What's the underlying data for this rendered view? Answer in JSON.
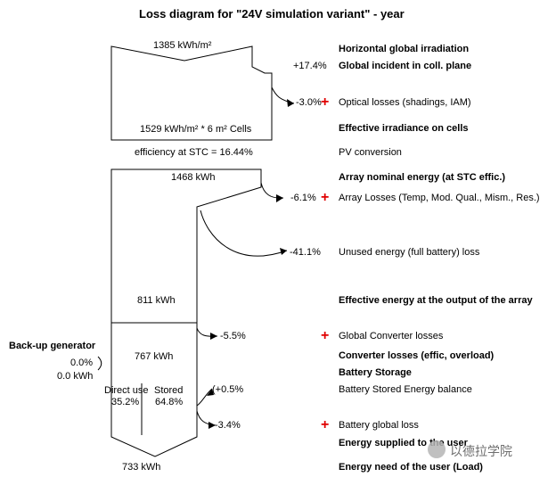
{
  "title": "Loss diagram for \"24V simulation variant\"  -  year",
  "left_values": {
    "horizontal_irradiation": "1385 kWh/m²",
    "effective_irradiance": "1529 kWh/m² * 6 m² Cells",
    "efficiency": "efficiency at STC = 16.44%",
    "array_nominal": "1468 kWh",
    "effective_output": "811 kWh",
    "converter_output": "767 kWh",
    "direct_use_label": "Direct use",
    "direct_use_pct": "35.2%",
    "stored_label": "Stored",
    "stored_pct": "64.8%",
    "energy_need": "733 kWh"
  },
  "backup": {
    "label": "Back-up generator",
    "pct": "0.0%",
    "kwh": "0.0 kWh"
  },
  "percentages": {
    "incident_gain": "+17.4%",
    "optical": "-3.0%",
    "array_losses": "-6.1%",
    "unused": "-41.1%",
    "converter": "-5.5%",
    "battery_balance": "(+0.5%",
    "battery_loss": "-3.4%"
  },
  "labels": {
    "horizontal_global": "Horizontal global irradiation",
    "global_incident": "Global incident in coll. plane",
    "optical_losses": "Optical losses (shadings, IAM)",
    "effective_irradiance": "Effective irradiance on cells",
    "pv_conversion": "PV conversion",
    "array_nominal": "Array nominal energy (at STC effic.)",
    "array_losses": "Array Losses (Temp, Mod. Qual., Mism., Res.)",
    "unused_energy": "Unused energy (full battery) loss",
    "effective_output": "Effective energy at the output of the array",
    "converter_losses_global": "Global Converter losses",
    "converter_losses": "Converter losses (effic, overload)",
    "battery_storage": "Battery Storage",
    "battery_balance": "Battery Stored Energy balance",
    "battery_global_loss": "Battery global loss",
    "energy_supplied": "Energy supplied to the user",
    "energy_need": "Energy need of the user (Load)"
  },
  "plus_sign": "+",
  "watermark": "以德拉学院",
  "colors": {
    "plus": "#e00000",
    "lines": "#000000"
  }
}
